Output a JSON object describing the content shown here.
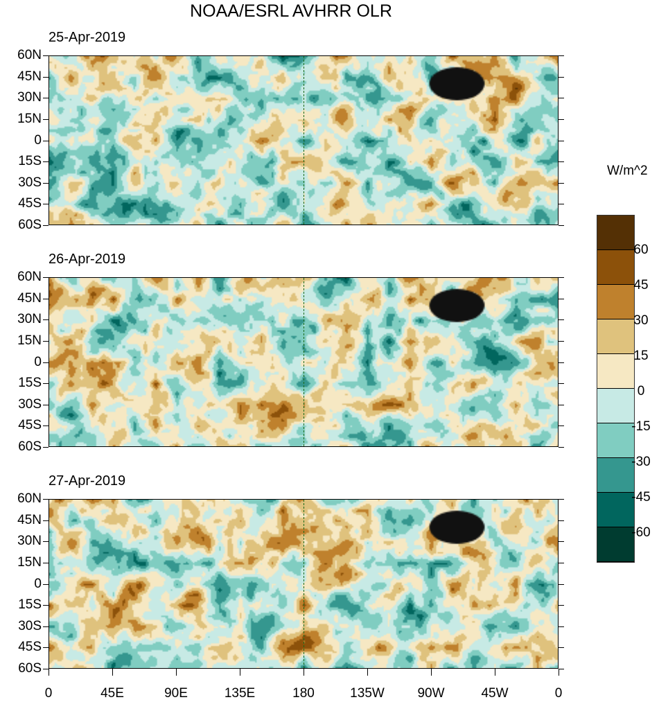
{
  "title": "NOAA/ESRL AVHRR OLR",
  "panels": [
    {
      "date": "25-Apr-2019",
      "seed": 11
    },
    {
      "date": "26-Apr-2019",
      "seed": 23
    },
    {
      "date": "27-Apr-2019",
      "seed": 37
    }
  ],
  "lat_ticks": [
    "60N",
    "45N",
    "30N",
    "15N",
    "0",
    "15S",
    "30S",
    "45S",
    "60S"
  ],
  "lon_ticks": [
    "0",
    "45E",
    "90E",
    "135E",
    "180",
    "135W",
    "90W",
    "45W",
    "0"
  ],
  "colorbar": {
    "unit": "W/m^2",
    "labels": [
      "60",
      "45",
      "30",
      "15",
      "0",
      "-15",
      "-30",
      "-45",
      "-60"
    ],
    "colors": [
      "#543005",
      "#8c510a",
      "#bf812d",
      "#dfc27d",
      "#f6e8c3",
      "#c7eae5",
      "#80cdc1",
      "#35978f",
      "#01665e",
      "#003c30"
    ]
  }
}
